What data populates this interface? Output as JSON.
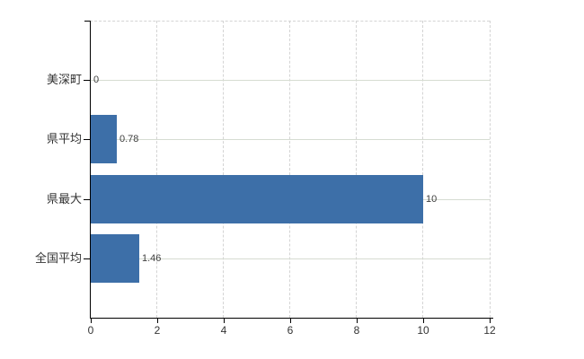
{
  "chart_data": {
    "type": "bar",
    "orientation": "horizontal",
    "title": "",
    "xlabel": "",
    "ylabel": "",
    "categories": [
      "美深町",
      "県平均",
      "県最大",
      "全国平均"
    ],
    "values": [
      0,
      0.78,
      10,
      1.46
    ],
    "value_labels": [
      "0",
      "0.78",
      "10",
      "1.46"
    ],
    "xlim": [
      0,
      12
    ],
    "x_tick_values": [
      0,
      2,
      4,
      6,
      8,
      10,
      12
    ],
    "x_tick_labels": [
      "0",
      "2",
      "4",
      "6",
      "8",
      "10",
      "12"
    ],
    "legend": "none",
    "grid": {
      "vertical": "dashed at ticks 2-10 plus dashed top and right plot border",
      "horizontal": "solid at each category center"
    },
    "colors": {
      "bar": "#3d6fa8",
      "axis": "#000000",
      "vertical_grid": "#d4d4d4",
      "horizontal_grid": "#d6dcd2",
      "plot_border": "#d4d4d4",
      "category_label": "#333333",
      "value_label": "#3f3f3f",
      "tick_label": "#333333",
      "background": "#ffffff"
    }
  }
}
